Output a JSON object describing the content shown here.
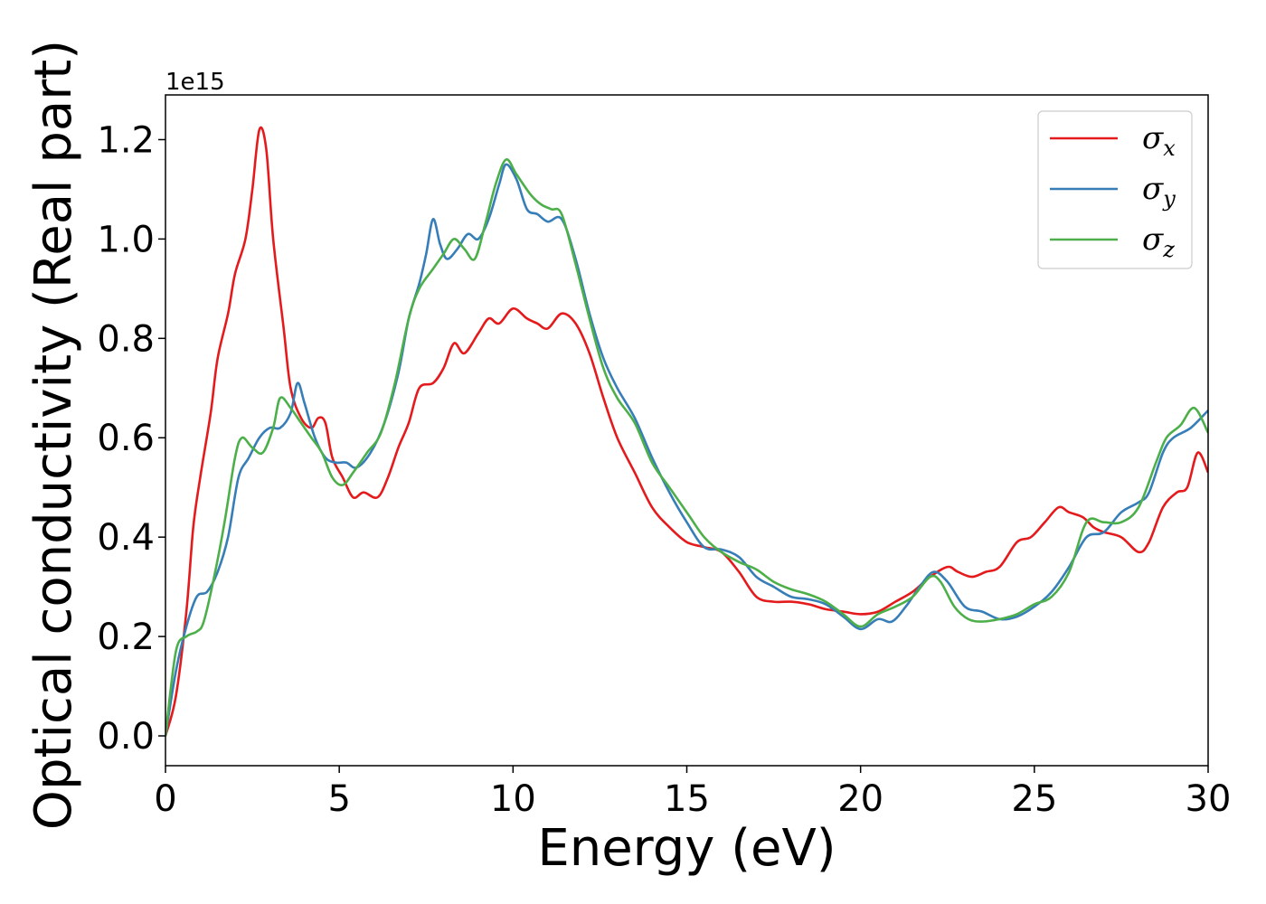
{
  "chart_data": {
    "type": "line",
    "xlabel": "Energy (eV)",
    "ylabel": "Optical conductivity (Real part)",
    "y_offset_label": "1e15",
    "xlim": [
      0,
      30
    ],
    "ylim": [
      -0.06,
      1.29
    ],
    "x_ticks": [
      0,
      5,
      10,
      15,
      20,
      25,
      30
    ],
    "x_tick_labels": [
      "0",
      "5",
      "10",
      "15",
      "20",
      "25",
      "30"
    ],
    "y_ticks": [
      0.0,
      0.2,
      0.4,
      0.6,
      0.8,
      1.0,
      1.2
    ],
    "y_tick_labels": [
      "0.0",
      "0.2",
      "0.4",
      "0.6",
      "0.8",
      "1.0",
      "1.2"
    ],
    "grid": false,
    "legend_position": "top-right",
    "series": [
      {
        "name": "σx",
        "name_base": "σ",
        "name_sub": "x",
        "color": "#e41a1c",
        "points": [
          [
            0,
            0
          ],
          [
            0.3,
            0.08
          ],
          [
            0.6,
            0.25
          ],
          [
            0.8,
            0.42
          ],
          [
            1.0,
            0.52
          ],
          [
            1.3,
            0.65
          ],
          [
            1.5,
            0.76
          ],
          [
            1.8,
            0.85
          ],
          [
            2.0,
            0.93
          ],
          [
            2.3,
            1.0
          ],
          [
            2.5,
            1.1
          ],
          [
            2.7,
            1.22
          ],
          [
            2.9,
            1.18
          ],
          [
            3.1,
            1.0
          ],
          [
            3.4,
            0.82
          ],
          [
            3.6,
            0.7
          ],
          [
            3.9,
            0.64
          ],
          [
            4.2,
            0.62
          ],
          [
            4.4,
            0.64
          ],
          [
            4.6,
            0.63
          ],
          [
            4.8,
            0.56
          ],
          [
            5.1,
            0.52
          ],
          [
            5.4,
            0.48
          ],
          [
            5.7,
            0.49
          ],
          [
            6.1,
            0.48
          ],
          [
            6.4,
            0.52
          ],
          [
            6.7,
            0.58
          ],
          [
            7.0,
            0.63
          ],
          [
            7.3,
            0.7
          ],
          [
            7.7,
            0.71
          ],
          [
            8.0,
            0.74
          ],
          [
            8.3,
            0.79
          ],
          [
            8.6,
            0.77
          ],
          [
            9.0,
            0.81
          ],
          [
            9.3,
            0.84
          ],
          [
            9.6,
            0.83
          ],
          [
            10.0,
            0.86
          ],
          [
            10.4,
            0.84
          ],
          [
            10.7,
            0.83
          ],
          [
            11.0,
            0.82
          ],
          [
            11.4,
            0.85
          ],
          [
            11.8,
            0.83
          ],
          [
            12.2,
            0.77
          ],
          [
            12.6,
            0.68
          ],
          [
            13.0,
            0.6
          ],
          [
            13.5,
            0.53
          ],
          [
            14.0,
            0.46
          ],
          [
            14.5,
            0.42
          ],
          [
            15.0,
            0.39
          ],
          [
            15.5,
            0.38
          ],
          [
            16.0,
            0.37
          ],
          [
            16.5,
            0.33
          ],
          [
            17.0,
            0.28
          ],
          [
            17.5,
            0.27
          ],
          [
            18.0,
            0.27
          ],
          [
            18.5,
            0.265
          ],
          [
            19.0,
            0.255
          ],
          [
            19.5,
            0.25
          ],
          [
            20.0,
            0.245
          ],
          [
            20.5,
            0.25
          ],
          [
            21.0,
            0.27
          ],
          [
            21.5,
            0.29
          ],
          [
            22.0,
            0.32
          ],
          [
            22.5,
            0.34
          ],
          [
            22.8,
            0.33
          ],
          [
            23.2,
            0.32
          ],
          [
            23.6,
            0.33
          ],
          [
            24.0,
            0.34
          ],
          [
            24.5,
            0.39
          ],
          [
            24.9,
            0.4
          ],
          [
            25.3,
            0.43
          ],
          [
            25.7,
            0.46
          ],
          [
            26.0,
            0.45
          ],
          [
            26.4,
            0.44
          ],
          [
            26.7,
            0.42
          ],
          [
            27.0,
            0.41
          ],
          [
            27.5,
            0.4
          ],
          [
            28.0,
            0.37
          ],
          [
            28.3,
            0.39
          ],
          [
            28.7,
            0.46
          ],
          [
            29.1,
            0.49
          ],
          [
            29.4,
            0.5
          ],
          [
            29.7,
            0.57
          ],
          [
            30.0,
            0.53
          ]
        ]
      },
      {
        "name": "σy",
        "name_base": "σ",
        "name_sub": "y",
        "color": "#377eb8",
        "points": [
          [
            0,
            0
          ],
          [
            0.3,
            0.13
          ],
          [
            0.6,
            0.22
          ],
          [
            0.9,
            0.28
          ],
          [
            1.2,
            0.29
          ],
          [
            1.5,
            0.33
          ],
          [
            1.8,
            0.4
          ],
          [
            2.1,
            0.52
          ],
          [
            2.4,
            0.56
          ],
          [
            2.7,
            0.6
          ],
          [
            3.0,
            0.62
          ],
          [
            3.3,
            0.62
          ],
          [
            3.6,
            0.65
          ],
          [
            3.8,
            0.71
          ],
          [
            4.0,
            0.67
          ],
          [
            4.3,
            0.6
          ],
          [
            4.6,
            0.56
          ],
          [
            4.9,
            0.55
          ],
          [
            5.2,
            0.55
          ],
          [
            5.5,
            0.54
          ],
          [
            5.9,
            0.57
          ],
          [
            6.3,
            0.63
          ],
          [
            6.7,
            0.73
          ],
          [
            7.0,
            0.84
          ],
          [
            7.3,
            0.91
          ],
          [
            7.5,
            0.97
          ],
          [
            7.7,
            1.04
          ],
          [
            7.9,
            0.99
          ],
          [
            8.1,
            0.96
          ],
          [
            8.4,
            0.98
          ],
          [
            8.7,
            1.01
          ],
          [
            9.0,
            1.0
          ],
          [
            9.3,
            1.04
          ],
          [
            9.6,
            1.11
          ],
          [
            9.8,
            1.15
          ],
          [
            10.1,
            1.12
          ],
          [
            10.4,
            1.06
          ],
          [
            10.7,
            1.05
          ],
          [
            11.0,
            1.035
          ],
          [
            11.4,
            1.04
          ],
          [
            11.8,
            0.96
          ],
          [
            12.2,
            0.85
          ],
          [
            12.6,
            0.76
          ],
          [
            13.0,
            0.7
          ],
          [
            13.5,
            0.64
          ],
          [
            14.0,
            0.56
          ],
          [
            14.5,
            0.49
          ],
          [
            15.0,
            0.43
          ],
          [
            15.5,
            0.38
          ],
          [
            16.0,
            0.375
          ],
          [
            16.5,
            0.36
          ],
          [
            17.0,
            0.32
          ],
          [
            17.5,
            0.3
          ],
          [
            18.0,
            0.28
          ],
          [
            18.5,
            0.275
          ],
          [
            19.0,
            0.265
          ],
          [
            19.5,
            0.24
          ],
          [
            20.0,
            0.215
          ],
          [
            20.5,
            0.235
          ],
          [
            20.9,
            0.23
          ],
          [
            21.3,
            0.26
          ],
          [
            21.7,
            0.3
          ],
          [
            22.1,
            0.33
          ],
          [
            22.5,
            0.31
          ],
          [
            23.0,
            0.26
          ],
          [
            23.5,
            0.25
          ],
          [
            24.0,
            0.235
          ],
          [
            24.5,
            0.24
          ],
          [
            25.0,
            0.26
          ],
          [
            25.5,
            0.29
          ],
          [
            26.0,
            0.34
          ],
          [
            26.5,
            0.4
          ],
          [
            27.0,
            0.41
          ],
          [
            27.5,
            0.45
          ],
          [
            28.0,
            0.47
          ],
          [
            28.3,
            0.49
          ],
          [
            28.7,
            0.57
          ],
          [
            29.0,
            0.6
          ],
          [
            29.5,
            0.62
          ],
          [
            30.0,
            0.655
          ]
        ]
      },
      {
        "name": "σz",
        "name_base": "σ",
        "name_sub": "z",
        "color": "#4daf4a",
        "points": [
          [
            0,
            0
          ],
          [
            0.3,
            0.17
          ],
          [
            0.6,
            0.2
          ],
          [
            0.9,
            0.21
          ],
          [
            1.1,
            0.23
          ],
          [
            1.4,
            0.32
          ],
          [
            1.7,
            0.43
          ],
          [
            2.0,
            0.56
          ],
          [
            2.2,
            0.6
          ],
          [
            2.5,
            0.58
          ],
          [
            2.8,
            0.57
          ],
          [
            3.1,
            0.62
          ],
          [
            3.3,
            0.68
          ],
          [
            3.6,
            0.66
          ],
          [
            3.9,
            0.63
          ],
          [
            4.2,
            0.6
          ],
          [
            4.5,
            0.57
          ],
          [
            4.8,
            0.52
          ],
          [
            5.1,
            0.505
          ],
          [
            5.4,
            0.53
          ],
          [
            5.8,
            0.57
          ],
          [
            6.2,
            0.61
          ],
          [
            6.6,
            0.71
          ],
          [
            7.0,
            0.84
          ],
          [
            7.3,
            0.9
          ],
          [
            7.7,
            0.94
          ],
          [
            8.0,
            0.97
          ],
          [
            8.3,
            1.0
          ],
          [
            8.6,
            0.98
          ],
          [
            8.9,
            0.96
          ],
          [
            9.2,
            1.03
          ],
          [
            9.5,
            1.11
          ],
          [
            9.8,
            1.16
          ],
          [
            10.1,
            1.13
          ],
          [
            10.5,
            1.09
          ],
          [
            10.8,
            1.07
          ],
          [
            11.1,
            1.06
          ],
          [
            11.4,
            1.05
          ],
          [
            11.8,
            0.95
          ],
          [
            12.2,
            0.84
          ],
          [
            12.6,
            0.74
          ],
          [
            13.0,
            0.68
          ],
          [
            13.5,
            0.63
          ],
          [
            14.0,
            0.55
          ],
          [
            14.5,
            0.5
          ],
          [
            15.0,
            0.45
          ],
          [
            15.5,
            0.4
          ],
          [
            16.0,
            0.37
          ],
          [
            16.5,
            0.35
          ],
          [
            17.0,
            0.335
          ],
          [
            17.5,
            0.31
          ],
          [
            18.0,
            0.295
          ],
          [
            18.5,
            0.285
          ],
          [
            19.0,
            0.27
          ],
          [
            19.5,
            0.245
          ],
          [
            20.0,
            0.22
          ],
          [
            20.5,
            0.245
          ],
          [
            21.0,
            0.26
          ],
          [
            21.5,
            0.28
          ],
          [
            22.0,
            0.32
          ],
          [
            22.3,
            0.31
          ],
          [
            22.7,
            0.26
          ],
          [
            23.1,
            0.235
          ],
          [
            23.5,
            0.23
          ],
          [
            24.0,
            0.235
          ],
          [
            24.5,
            0.245
          ],
          [
            25.0,
            0.265
          ],
          [
            25.5,
            0.28
          ],
          [
            26.0,
            0.33
          ],
          [
            26.5,
            0.43
          ],
          [
            27.0,
            0.43
          ],
          [
            27.5,
            0.43
          ],
          [
            28.0,
            0.46
          ],
          [
            28.5,
            0.55
          ],
          [
            28.8,
            0.6
          ],
          [
            29.2,
            0.625
          ],
          [
            29.6,
            0.66
          ],
          [
            30.0,
            0.61
          ]
        ]
      }
    ]
  }
}
